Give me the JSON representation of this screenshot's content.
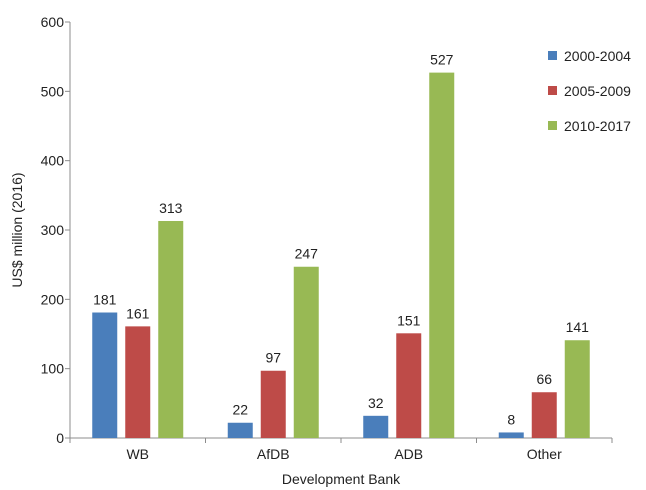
{
  "chart_data": {
    "type": "bar",
    "title": "",
    "xlabel": "Development Bank",
    "ylabel": "US$ million (2016)",
    "ylim": [
      0,
      600
    ],
    "yticks": [
      0,
      100,
      200,
      300,
      400,
      500,
      600
    ],
    "grid": false,
    "legend_position": "top-right",
    "categories": [
      "WB",
      "AfDB",
      "ADB",
      "Other"
    ],
    "series": [
      {
        "name": "2000-2004",
        "color": "#4a7ebb",
        "values": [
          181,
          22,
          32,
          8
        ]
      },
      {
        "name": "2005-2009",
        "color": "#be4b48",
        "values": [
          161,
          97,
          151,
          66
        ]
      },
      {
        "name": "2010-2017",
        "color": "#98b954",
        "values": [
          313,
          247,
          527,
          141
        ]
      }
    ]
  }
}
